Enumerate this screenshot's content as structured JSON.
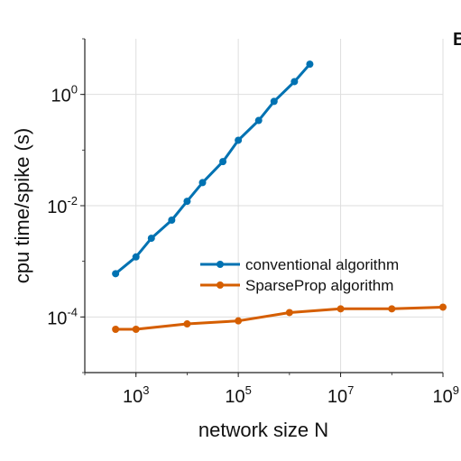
{
  "panel_label": "B",
  "chart_data": {
    "type": "line",
    "xlabel": "network size N",
    "ylabel": "cpu time/spike (s)",
    "xscale": "log",
    "yscale": "log",
    "xlim": [
      100,
      1000000000
    ],
    "ylim": [
      1e-05,
      10
    ],
    "grid": true,
    "legend_position": "center-right",
    "x_ticks": [
      {
        "value": 1000,
        "base": "10",
        "exp": "3"
      },
      {
        "value": 100000,
        "base": "10",
        "exp": "5"
      },
      {
        "value": 10000000,
        "base": "10",
        "exp": "7"
      },
      {
        "value": 1000000000,
        "base": "10",
        "exp": "9"
      }
    ],
    "y_ticks": [
      {
        "value": 0.0001,
        "base": "10",
        "exp": "-4"
      },
      {
        "value": 0.01,
        "base": "10",
        "exp": "-2"
      },
      {
        "value": 1,
        "base": "10",
        "exp": "0"
      }
    ],
    "series": [
      {
        "name": "conventional algorithm",
        "color": "#0072b2",
        "x": [
          400,
          1000,
          2000,
          5000,
          10000,
          20000,
          50000,
          100000,
          250000,
          500000,
          1250000,
          2500000
        ],
        "y": [
          0.0006,
          0.0012,
          0.0026,
          0.0055,
          0.012,
          0.026,
          0.062,
          0.15,
          0.34,
          0.75,
          1.7,
          3.5
        ]
      },
      {
        "name": "SparseProp algorithm",
        "color": "#d55e00",
        "x": [
          400,
          1000,
          10000,
          100000,
          1000000,
          10000000,
          100000000,
          1000000000
        ],
        "y": [
          6e-05,
          6e-05,
          7.5e-05,
          8.5e-05,
          0.00012,
          0.00014,
          0.00014,
          0.00015
        ]
      }
    ]
  }
}
